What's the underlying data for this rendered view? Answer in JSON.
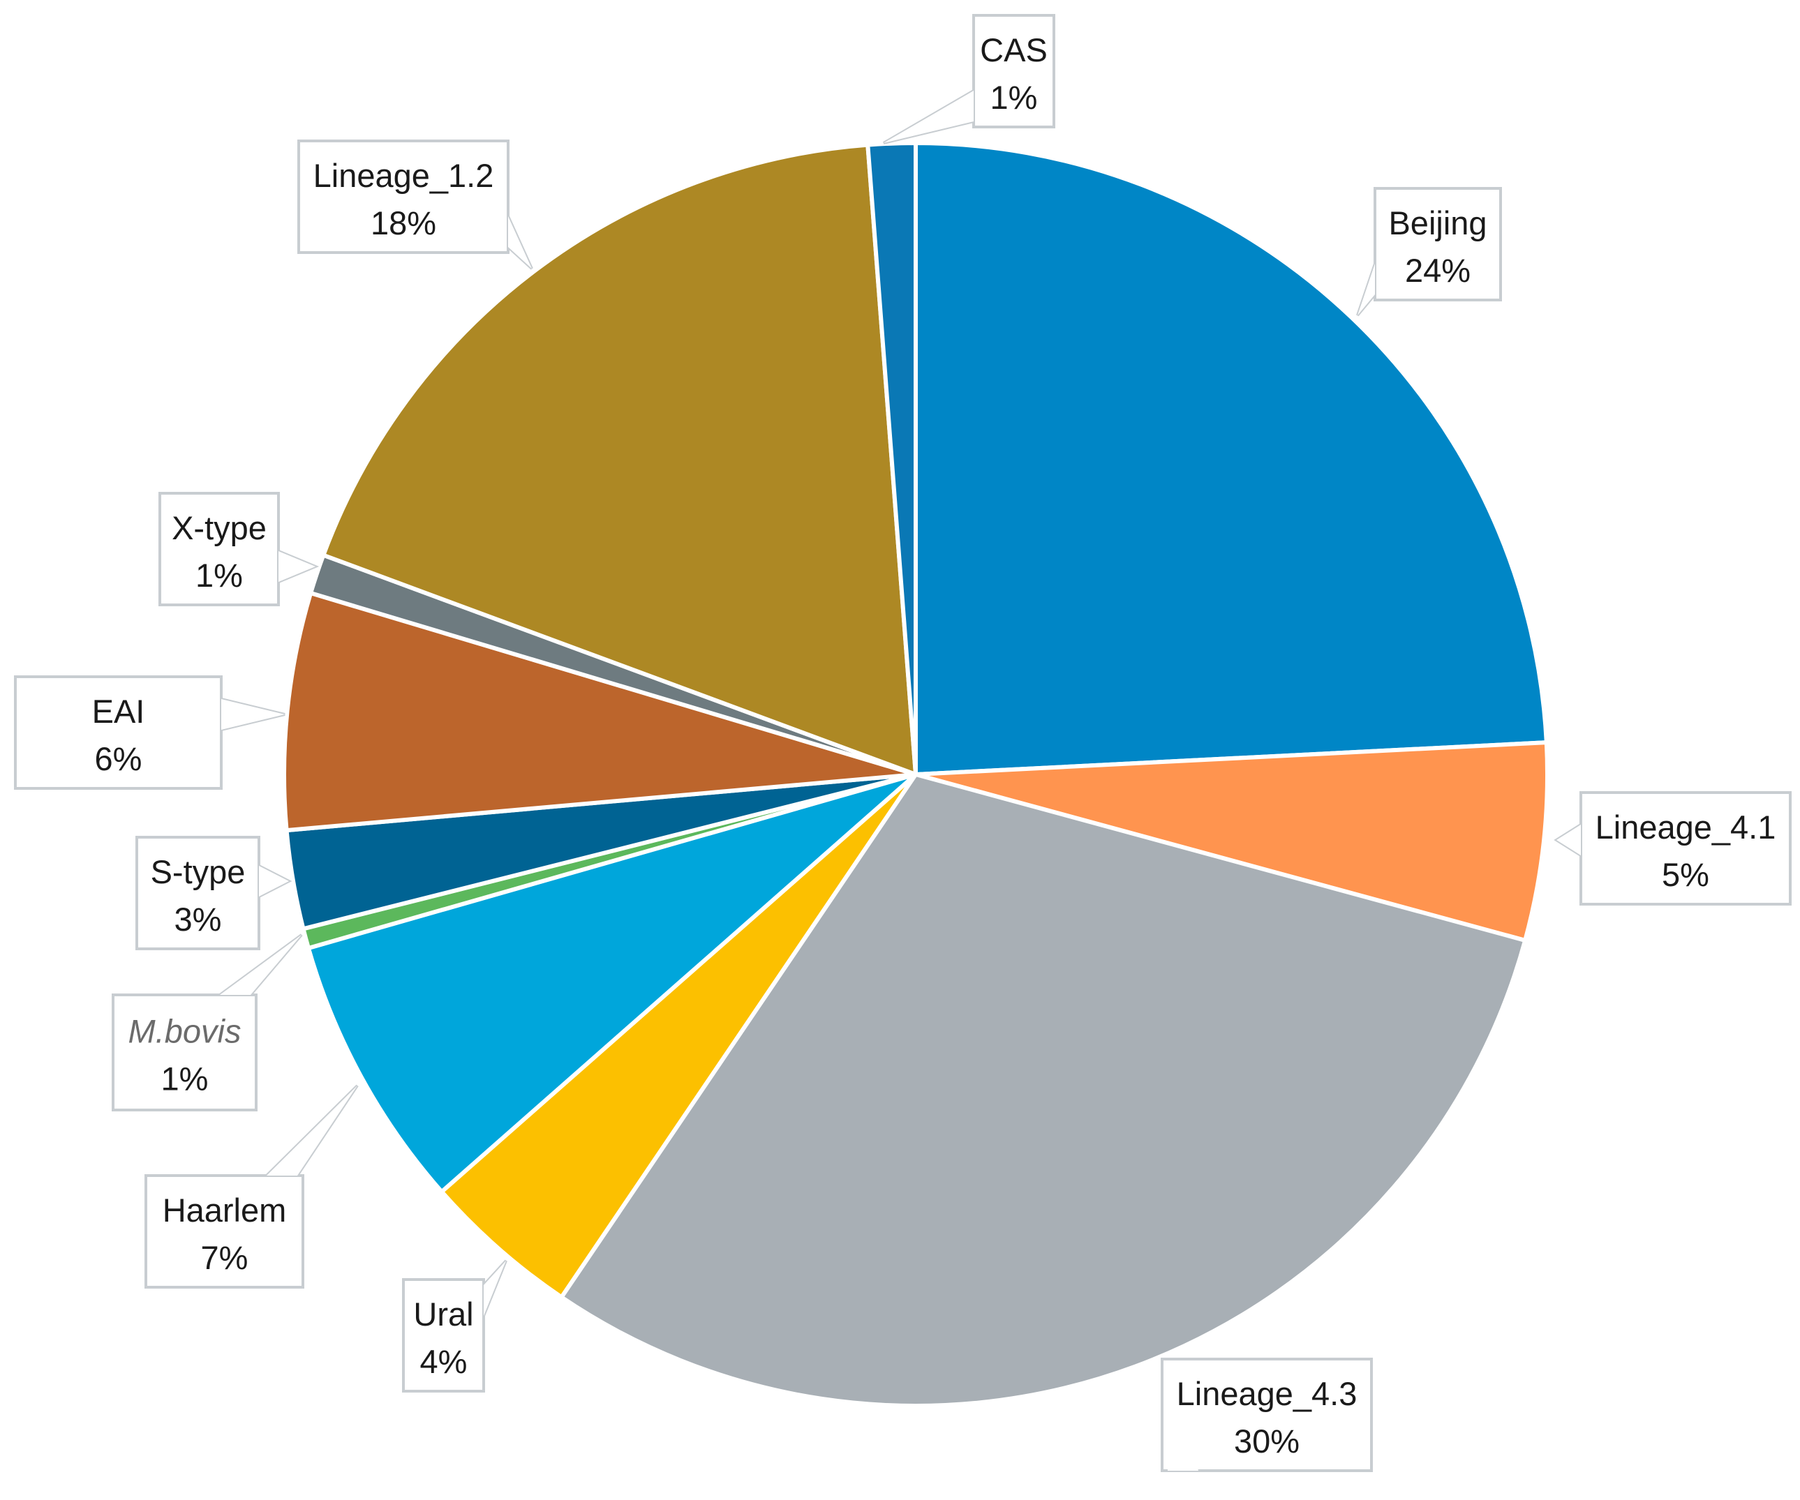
{
  "chart_data": {
    "type": "pie",
    "title": "",
    "slices": [
      {
        "label": "Beijing",
        "value": 24,
        "display": "24%",
        "color": "#0086C6"
      },
      {
        "label": "Lineage_4.1",
        "value": 5,
        "display": "5%",
        "color": "#FF944F"
      },
      {
        "label": "Lineage_4.3",
        "value": 30,
        "display": "30%",
        "color": "#A8AFB5"
      },
      {
        "label": "Ural",
        "value": 4,
        "display": "4%",
        "color": "#FCC000"
      },
      {
        "label": "Haarlem",
        "value": 7,
        "display": "7%",
        "color": "#00A6DB"
      },
      {
        "label": "M.bovis",
        "value": 0.5,
        "display": "1%",
        "color": "#5CB85C",
        "italic": true
      },
      {
        "label": "S-type",
        "value": 2.5,
        "display": "3%",
        "color": "#006393"
      },
      {
        "label": "EAI",
        "value": 6,
        "display": "6%",
        "color": "#BC652C"
      },
      {
        "label": "X-type",
        "value": 1,
        "display": "1%",
        "color": "#6E7B80"
      },
      {
        "label": "Lineage_1.2",
        "value": 18,
        "display": "18%",
        "color": "#AD8824"
      },
      {
        "label": "CAS",
        "value": 1.2,
        "display": "1%",
        "color": "#0A78B5"
      }
    ]
  }
}
